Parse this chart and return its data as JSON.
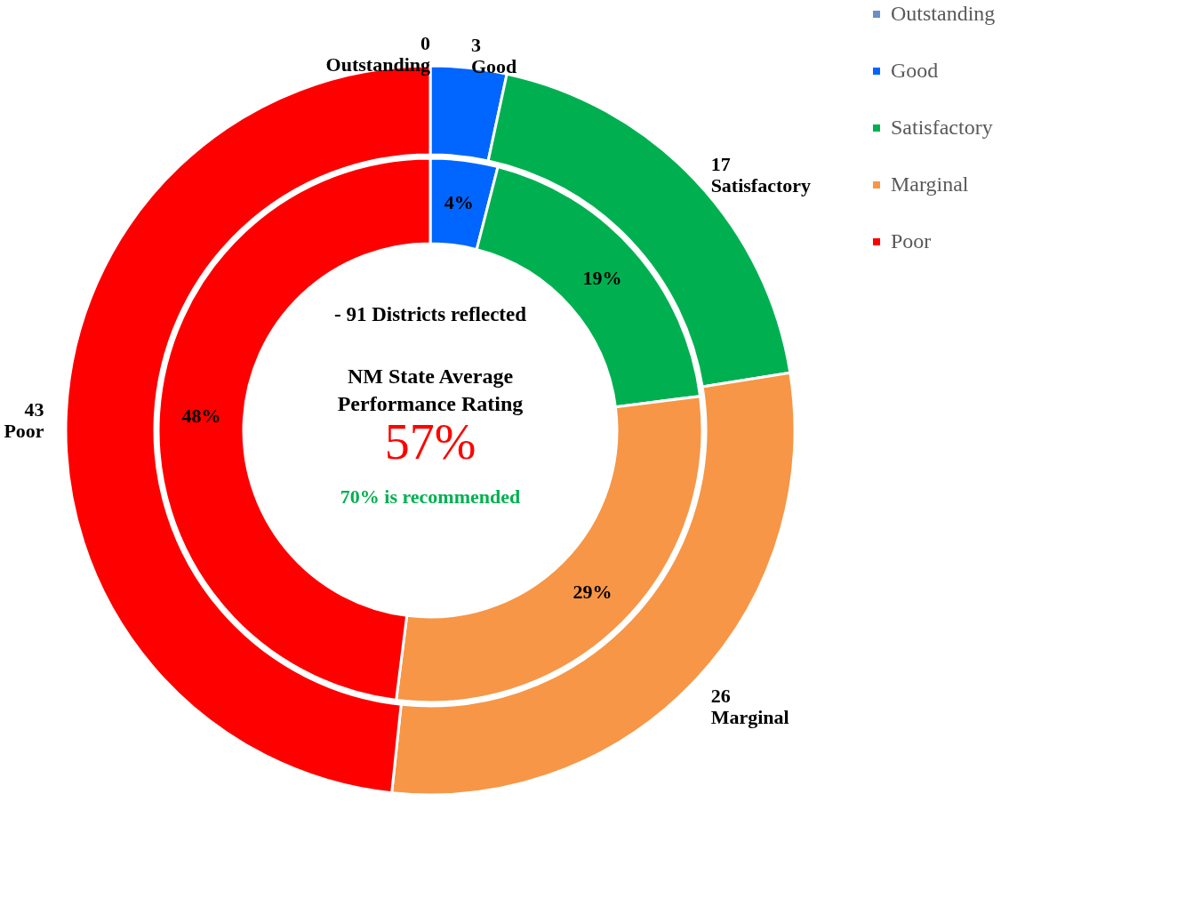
{
  "chart_data": {
    "type": "donut",
    "categories": [
      "Outstanding",
      "Good",
      "Satisfactory",
      "Marginal",
      "Poor"
    ],
    "colors": [
      "#6a8fc8",
      "#0066ff",
      "#00b050",
      "#f79646",
      "#ff0000"
    ],
    "series": [
      {
        "values": [
          0,
          3,
          17,
          26,
          43
        ],
        "value_labels": [
          "0",
          "3",
          "17",
          "26",
          "43"
        ]
      },
      {
        "values": [
          0,
          4,
          19,
          29,
          48
        ],
        "value_labels": [
          null,
          "4%",
          "19%",
          "29%",
          "48%"
        ]
      }
    ],
    "legend": "right",
    "annotations": [
      "- 91 Districts reflected",
      "NM State Average Performance Rating",
      "57%",
      "70% is recommended"
    ]
  }
}
